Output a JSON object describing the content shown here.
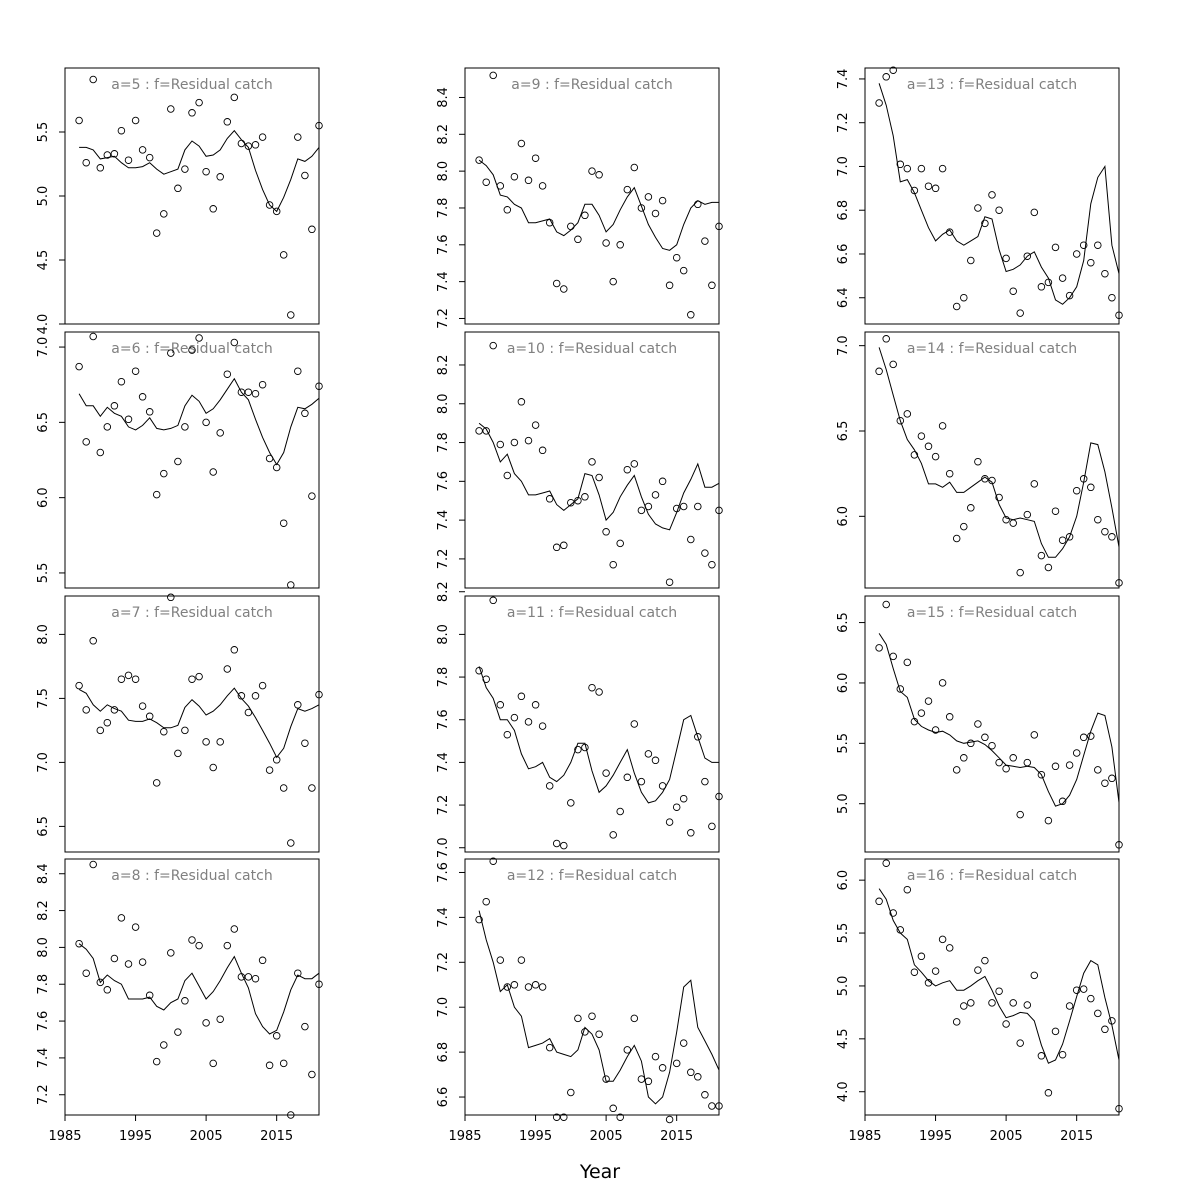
{
  "xlabel": "Year",
  "chart_data": {
    "type": "scatter",
    "description": "Observed (points) and fitted (line) log residual catch by age, 12 panels",
    "xlabel": "Year",
    "x_ticks": [
      1985,
      1995,
      2005,
      2015
    ],
    "xlim": [
      1985,
      2021
    ],
    "years": [
      1987,
      1988,
      1989,
      1990,
      1991,
      1992,
      1993,
      1994,
      1995,
      1996,
      1997,
      1998,
      1999,
      2000,
      2001,
      2002,
      2003,
      2004,
      2005,
      2006,
      2007,
      2008,
      2009,
      2010,
      2011,
      2012,
      2013,
      2014,
      2015,
      2016,
      2017,
      2018,
      2019,
      2020,
      2021
    ],
    "panels": [
      {
        "title": "a=5  :  f=Residual catch",
        "ylim": [
          4.0,
          6.0
        ],
        "yticks": [
          4.0,
          4.5,
          5.0,
          5.5
        ],
        "observed": [
          5.59,
          5.26,
          5.91,
          5.22,
          5.32,
          5.33,
          5.51,
          5.28,
          5.59,
          5.36,
          5.3,
          4.71,
          4.86,
          5.68,
          5.06,
          5.21,
          5.65,
          5.73,
          5.19,
          4.9,
          5.15,
          5.58,
          5.77,
          5.41,
          5.39,
          5.4,
          5.46,
          4.93,
          4.88,
          4.54,
          4.07,
          5.46,
          5.16,
          4.74,
          5.55
        ],
        "fitted": [
          5.38,
          5.38,
          5.36,
          5.29,
          5.3,
          5.31,
          5.26,
          5.22,
          5.22,
          5.23,
          5.26,
          5.21,
          5.17,
          5.19,
          5.21,
          5.36,
          5.43,
          5.39,
          5.31,
          5.32,
          5.36,
          5.45,
          5.51,
          5.44,
          5.38,
          5.2,
          5.05,
          4.93,
          4.88,
          4.99,
          5.13,
          5.29,
          5.27,
          5.31,
          5.38
        ]
      },
      {
        "title": "a=6  :  f=Residual catch",
        "ylim": [
          5.4,
          7.1
        ],
        "yticks": [
          5.5,
          6.0,
          6.5,
          7.0
        ],
        "observed": [
          6.87,
          6.37,
          7.07,
          6.3,
          6.47,
          6.61,
          6.77,
          6.52,
          6.84,
          6.67,
          6.57,
          6.02,
          6.16,
          6.96,
          6.24,
          6.47,
          6.98,
          7.06,
          6.5,
          6.17,
          6.43,
          6.82,
          7.03,
          6.7,
          6.7,
          6.69,
          6.75,
          6.26,
          6.2,
          5.83,
          5.42,
          6.84,
          6.56,
          6.01,
          6.74
        ],
        "fitted": [
          6.69,
          6.61,
          6.61,
          6.54,
          6.6,
          6.56,
          6.54,
          6.47,
          6.45,
          6.48,
          6.53,
          6.46,
          6.45,
          6.46,
          6.48,
          6.61,
          6.68,
          6.64,
          6.56,
          6.59,
          6.65,
          6.72,
          6.79,
          6.7,
          6.65,
          6.52,
          6.4,
          6.3,
          6.22,
          6.3,
          6.47,
          6.6,
          6.59,
          6.62,
          6.66
        ]
      },
      {
        "title": "a=7  :  f=Residual catch",
        "ylim": [
          6.3,
          8.3
        ],
        "yticks": [
          6.5,
          7.0,
          7.5,
          8.0
        ],
        "observed": [
          7.6,
          7.41,
          7.95,
          7.25,
          7.31,
          7.41,
          7.65,
          7.68,
          7.65,
          7.44,
          7.36,
          6.84,
          7.24,
          8.29,
          7.07,
          7.25,
          7.65,
          7.67,
          7.16,
          6.96,
          7.16,
          7.73,
          7.88,
          7.52,
          7.39,
          7.52,
          7.6,
          6.94,
          7.02,
          6.8,
          6.37,
          7.45,
          7.15,
          6.8,
          7.53
        ],
        "fitted": [
          7.57,
          7.54,
          7.45,
          7.4,
          7.45,
          7.42,
          7.4,
          7.33,
          7.32,
          7.32,
          7.34,
          7.31,
          7.27,
          7.27,
          7.29,
          7.43,
          7.49,
          7.44,
          7.37,
          7.4,
          7.45,
          7.52,
          7.58,
          7.5,
          7.44,
          7.35,
          7.25,
          7.15,
          7.04,
          7.11,
          7.28,
          7.42,
          7.4,
          7.42,
          7.45
        ]
      },
      {
        "title": "a=8  :  f=Residual catch",
        "ylim": [
          7.09,
          8.48
        ],
        "yticks": [
          7.2,
          7.4,
          7.6,
          7.8,
          8.0,
          8.2,
          8.4
        ],
        "observed": [
          8.02,
          7.86,
          8.45,
          7.81,
          7.77,
          7.94,
          8.16,
          7.91,
          8.11,
          7.92,
          7.74,
          7.38,
          7.47,
          7.97,
          7.54,
          7.71,
          8.04,
          8.01,
          7.59,
          7.37,
          7.61,
          8.01,
          8.1,
          7.84,
          7.84,
          7.83,
          7.93,
          7.36,
          7.52,
          7.37,
          7.09,
          7.86,
          7.57,
          7.31,
          7.8
        ],
        "fitted": [
          8.02,
          7.99,
          7.94,
          7.81,
          7.85,
          7.82,
          7.8,
          7.72,
          7.72,
          7.72,
          7.73,
          7.68,
          7.66,
          7.7,
          7.72,
          7.82,
          7.86,
          7.79,
          7.72,
          7.76,
          7.82,
          7.89,
          7.95,
          7.86,
          7.78,
          7.64,
          7.57,
          7.53,
          7.55,
          7.65,
          7.77,
          7.85,
          7.83,
          7.83,
          7.86
        ]
      },
      {
        "title": "a=9  :  f=Residual catch",
        "ylim": [
          7.17,
          8.56
        ],
        "yticks": [
          7.2,
          7.4,
          7.6,
          7.8,
          8.0,
          8.2,
          8.4
        ],
        "observed": [
          8.06,
          7.94,
          8.52,
          7.92,
          7.79,
          7.97,
          8.15,
          7.95,
          8.07,
          7.92,
          7.72,
          7.39,
          7.36,
          7.7,
          7.63,
          7.76,
          8.0,
          7.98,
          7.61,
          7.4,
          7.6,
          7.9,
          8.02,
          7.8,
          7.86,
          7.77,
          7.84,
          7.38,
          7.53,
          7.46,
          7.22,
          7.82,
          7.62,
          7.38,
          7.7
        ],
        "fitted": [
          8.06,
          8.03,
          7.98,
          7.87,
          7.86,
          7.82,
          7.8,
          7.72,
          7.72,
          7.73,
          7.74,
          7.67,
          7.65,
          7.68,
          7.72,
          7.82,
          7.82,
          7.76,
          7.67,
          7.71,
          7.79,
          7.86,
          7.91,
          7.81,
          7.71,
          7.64,
          7.58,
          7.57,
          7.6,
          7.71,
          7.8,
          7.84,
          7.82,
          7.83,
          7.83
        ]
      },
      {
        "title": "a=10  :  f=Residual catch",
        "ylim": [
          7.05,
          8.37
        ],
        "yticks": [
          7.2,
          7.4,
          7.6,
          7.8,
          8.0,
          8.2
        ],
        "observed": [
          7.86,
          7.86,
          8.3,
          7.79,
          7.63,
          7.8,
          8.01,
          7.81,
          7.89,
          7.76,
          7.51,
          7.26,
          7.27,
          7.49,
          7.5,
          7.52,
          7.7,
          7.62,
          7.34,
          7.17,
          7.28,
          7.66,
          7.69,
          7.45,
          7.47,
          7.53,
          7.6,
          7.08,
          7.46,
          7.47,
          7.3,
          7.47,
          7.23,
          7.17,
          7.45
        ],
        "fitted": [
          7.9,
          7.87,
          7.8,
          7.7,
          7.74,
          7.64,
          7.6,
          7.53,
          7.53,
          7.54,
          7.55,
          7.48,
          7.45,
          7.48,
          7.51,
          7.64,
          7.63,
          7.53,
          7.4,
          7.44,
          7.52,
          7.58,
          7.63,
          7.52,
          7.43,
          7.38,
          7.36,
          7.35,
          7.44,
          7.54,
          7.61,
          7.69,
          7.57,
          7.57,
          7.59
        ]
      },
      {
        "title": "a=11  :  f=Residual catch",
        "ylim": [
          6.98,
          8.18
        ],
        "yticks": [
          7.0,
          7.2,
          7.4,
          7.6,
          7.8,
          8.0,
          8.2
        ],
        "observed": [
          7.83,
          7.79,
          8.16,
          7.67,
          7.53,
          7.61,
          7.71,
          7.59,
          7.67,
          7.57,
          7.29,
          7.02,
          7.01,
          7.21,
          7.46,
          7.47,
          7.75,
          7.73,
          7.35,
          7.06,
          7.17,
          7.33,
          7.58,
          7.31,
          7.44,
          7.41,
          7.29,
          7.12,
          7.19,
          7.23,
          7.07,
          7.52,
          7.31,
          7.1,
          7.24
        ],
        "fitted": [
          7.85,
          7.75,
          7.7,
          7.6,
          7.6,
          7.55,
          7.44,
          7.37,
          7.38,
          7.4,
          7.33,
          7.31,
          7.34,
          7.4,
          7.49,
          7.49,
          7.36,
          7.26,
          7.29,
          7.34,
          7.4,
          7.46,
          7.35,
          7.26,
          7.21,
          7.22,
          7.26,
          7.32,
          7.46,
          7.6,
          7.62,
          7.52,
          7.42,
          7.4,
          7.4
        ]
      },
      {
        "title": "a=12  :  f=Residual catch",
        "ylim": [
          6.52,
          7.66
        ],
        "yticks": [
          6.6,
          6.8,
          7.0,
          7.2,
          7.4,
          7.6
        ],
        "observed": [
          7.39,
          7.47,
          7.65,
          7.21,
          7.09,
          7.1,
          7.21,
          7.09,
          7.1,
          7.09,
          6.82,
          6.51,
          6.51,
          6.62,
          6.95,
          6.89,
          6.96,
          6.88,
          6.68,
          6.55,
          6.51,
          6.81,
          6.95,
          6.68,
          6.67,
          6.78,
          6.73,
          6.5,
          6.75,
          6.84,
          6.71,
          6.69,
          6.61,
          6.56,
          6.56
        ],
        "fitted": [
          7.43,
          7.3,
          7.2,
          7.07,
          7.1,
          7.0,
          6.96,
          6.82,
          6.83,
          6.84,
          6.86,
          6.8,
          6.79,
          6.78,
          6.81,
          6.91,
          6.88,
          6.81,
          6.67,
          6.67,
          6.72,
          6.78,
          6.83,
          6.76,
          6.6,
          6.57,
          6.6,
          6.71,
          6.89,
          7.09,
          7.12,
          6.91,
          6.85,
          6.79,
          6.72
        ]
      },
      {
        "title": "a=13  :  f=Residual catch",
        "ylim": [
          6.28,
          7.45
        ],
        "yticks": [
          6.4,
          6.6,
          6.8,
          7.0,
          7.2,
          7.4
        ],
        "observed": [
          7.29,
          7.41,
          7.44,
          7.01,
          6.99,
          6.89,
          6.99,
          6.91,
          6.9,
          6.99,
          6.7,
          6.36,
          6.4,
          6.57,
          6.81,
          6.74,
          6.87,
          6.8,
          6.58,
          6.43,
          6.33,
          6.59,
          6.79,
          6.45,
          6.47,
          6.63,
          6.49,
          6.41,
          6.6,
          6.64,
          6.56,
          6.64,
          6.51,
          6.4,
          6.32
        ],
        "fitted": [
          7.38,
          7.28,
          7.14,
          6.93,
          6.94,
          6.88,
          6.8,
          6.72,
          6.66,
          6.69,
          6.71,
          6.66,
          6.64,
          6.66,
          6.68,
          6.77,
          6.76,
          6.62,
          6.52,
          6.53,
          6.55,
          6.59,
          6.61,
          6.54,
          6.49,
          6.39,
          6.37,
          6.4,
          6.45,
          6.57,
          6.83,
          6.95,
          7.0,
          6.64,
          6.51
        ]
      },
      {
        "title": "a=14  :  f=Residual catch",
        "ylim": [
          5.58,
          7.08
        ],
        "yticks": [
          6.0,
          6.5,
          7.0
        ],
        "observed": [
          6.85,
          7.04,
          6.89,
          6.56,
          6.6,
          6.36,
          6.47,
          6.41,
          6.35,
          6.53,
          6.25,
          5.87,
          5.94,
          6.05,
          6.32,
          6.22,
          6.21,
          6.11,
          5.98,
          5.96,
          5.67,
          6.01,
          6.19,
          5.77,
          5.7,
          6.03,
          5.86,
          5.88,
          6.15,
          6.22,
          6.17,
          5.98,
          5.91,
          5.88,
          5.61
        ],
        "fitted": [
          6.99,
          6.86,
          6.71,
          6.56,
          6.45,
          6.39,
          6.31,
          6.19,
          6.19,
          6.17,
          6.2,
          6.14,
          6.14,
          6.17,
          6.2,
          6.23,
          6.2,
          6.07,
          5.99,
          5.98,
          5.99,
          5.98,
          5.97,
          5.84,
          5.76,
          5.76,
          5.81,
          5.88,
          6.0,
          6.2,
          6.43,
          6.42,
          6.26,
          6.05,
          5.82
        ]
      },
      {
        "title": "a=15  :  f=Residual catch",
        "ylim": [
          4.6,
          6.72
        ],
        "yticks": [
          5.0,
          5.5,
          6.0,
          6.5
        ],
        "observed": [
          6.29,
          6.65,
          6.22,
          5.95,
          6.17,
          5.68,
          5.75,
          5.85,
          5.61,
          6.0,
          5.72,
          5.28,
          5.38,
          5.5,
          5.66,
          5.55,
          5.48,
          5.34,
          5.29,
          5.38,
          4.91,
          5.34,
          5.57,
          5.24,
          4.86,
          5.31,
          5.02,
          5.32,
          5.42,
          5.55,
          5.56,
          5.28,
          5.17,
          5.21,
          4.66
        ],
        "fitted": [
          6.41,
          6.32,
          6.12,
          5.93,
          5.88,
          5.7,
          5.64,
          5.61,
          5.59,
          5.6,
          5.57,
          5.52,
          5.5,
          5.51,
          5.52,
          5.49,
          5.44,
          5.38,
          5.32,
          5.31,
          5.3,
          5.31,
          5.3,
          5.24,
          5.1,
          4.98,
          5.0,
          5.07,
          5.2,
          5.4,
          5.6,
          5.75,
          5.73,
          5.47,
          5.01
        ]
      },
      {
        "title": "a=16  :  f=Residual catch",
        "ylim": [
          3.78,
          6.2
        ],
        "yticks": [
          4.0,
          4.5,
          5.0,
          5.5,
          6.0
        ],
        "observed": [
          5.8,
          6.16,
          5.69,
          5.53,
          5.91,
          5.13,
          5.28,
          5.03,
          5.14,
          5.44,
          5.36,
          4.66,
          4.81,
          4.84,
          5.15,
          5.24,
          4.84,
          4.95,
          4.64,
          4.84,
          4.46,
          4.82,
          5.1,
          4.34,
          3.99,
          4.57,
          4.35,
          4.81,
          4.96,
          4.97,
          4.88,
          4.74,
          4.59,
          4.67,
          3.84
        ],
        "fitted": [
          5.92,
          5.82,
          5.62,
          5.5,
          5.44,
          5.2,
          5.13,
          5.05,
          5.0,
          5.03,
          5.05,
          4.96,
          4.96,
          5.0,
          5.05,
          5.09,
          4.96,
          4.81,
          4.7,
          4.72,
          4.75,
          4.74,
          4.67,
          4.44,
          4.27,
          4.3,
          4.45,
          4.67,
          4.9,
          5.12,
          5.24,
          5.2,
          4.89,
          4.63,
          4.3
        ]
      }
    ]
  }
}
